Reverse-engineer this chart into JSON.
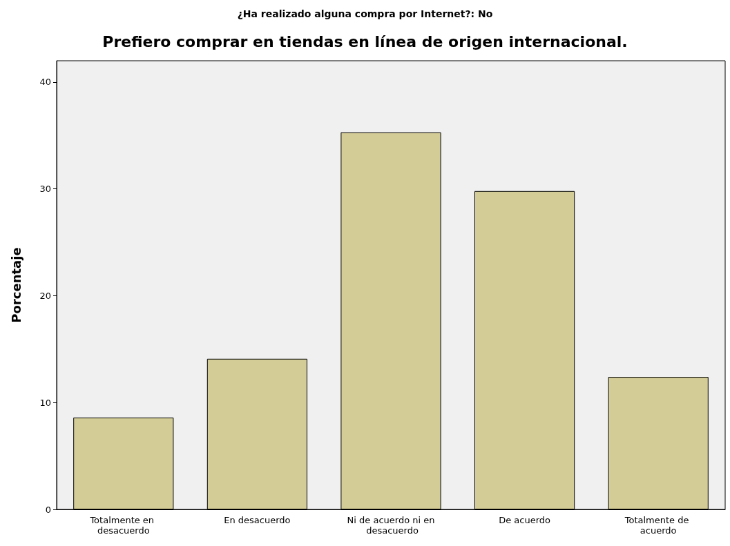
{
  "chart_data": {
    "type": "bar",
    "title": "Prefiero comprar en tiendas en línea de origen internacional.",
    "subtitle": "¿Ha realizado alguna compra por Internet?: No",
    "ylabel": "Porcentaje",
    "categories": [
      "Totalmente en desacuerdo",
      "En desacuerdo",
      "Ni de acuerdo ni en desacuerdo",
      "De acuerdo",
      "Totalmente de acuerdo"
    ],
    "values": [
      8.6,
      14.1,
      35.3,
      29.8,
      12.4
    ],
    "color": "#d4cc96",
    "ylim": [
      0,
      42
    ],
    "yticks": [
      0,
      10,
      20,
      30,
      40
    ],
    "grid": false
  }
}
